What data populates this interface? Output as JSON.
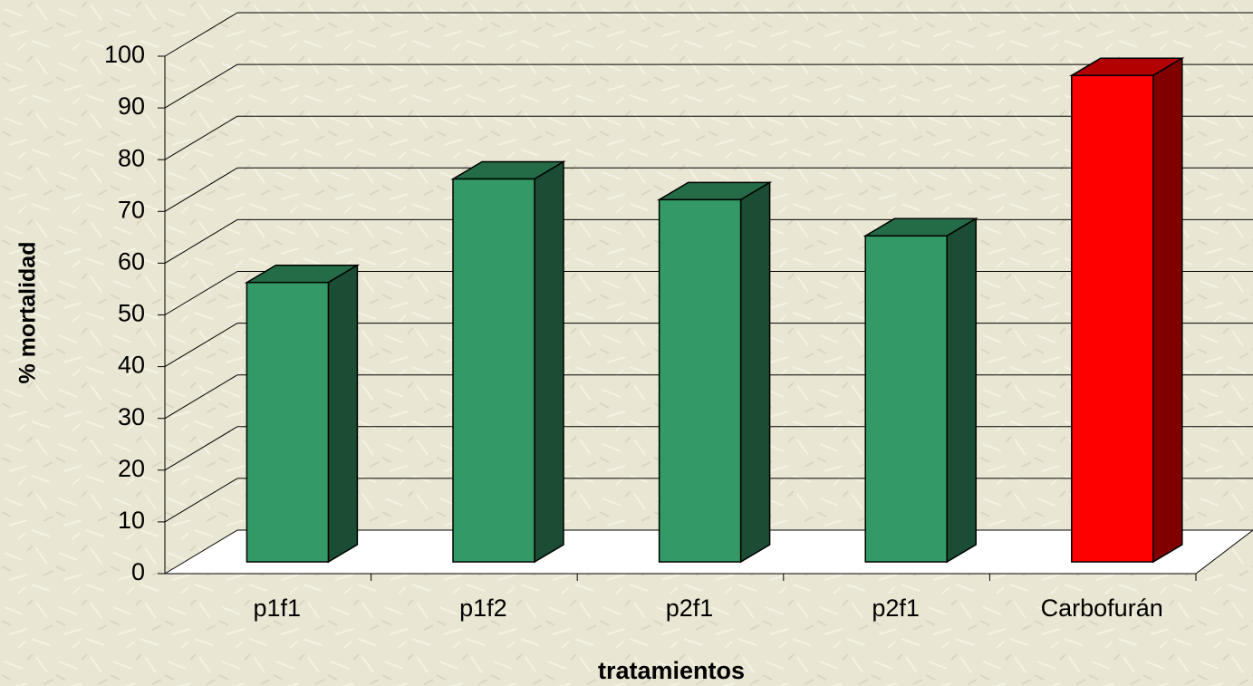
{
  "chart_data": {
    "type": "bar3d",
    "categories": [
      "p1f1",
      "p1f2",
      "p2f1",
      "p2f1",
      "Carbofurán"
    ],
    "values": [
      54,
      74,
      70,
      63,
      94
    ],
    "colors": [
      "#339966",
      "#339966",
      "#339966",
      "#339966",
      "#ff0000"
    ],
    "x_label": "tratamientos",
    "y_label": "% mortalidad",
    "ylim": [
      0,
      100
    ],
    "yticks": [
      0,
      10,
      20,
      30,
      40,
      50,
      60,
      70,
      80,
      90,
      100
    ],
    "grid": true
  }
}
